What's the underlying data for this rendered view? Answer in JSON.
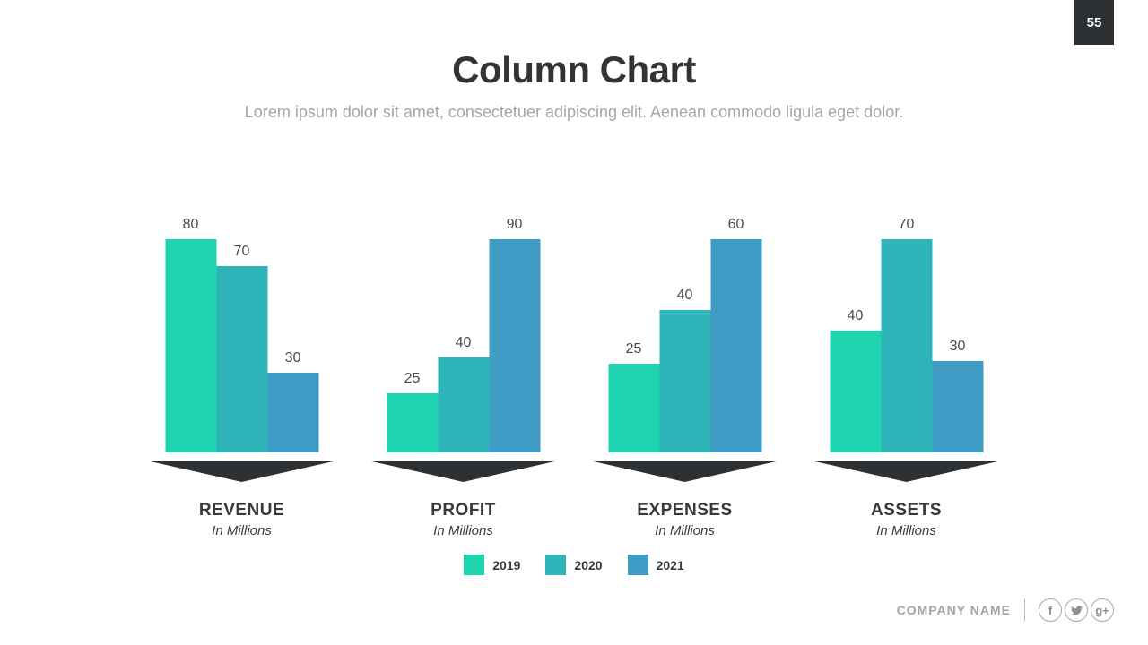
{
  "page_badge": {
    "number": "55"
  },
  "header": {
    "title": "Column Chart",
    "subtitle": "Lorem ipsum dolor sit amet, consectetuer adipiscing elit. Aenean commodo ligula eget dolor."
  },
  "chart_data": {
    "type": "bar",
    "title": "Column Chart",
    "series": [
      {
        "name": "2019",
        "color": "#1ed3ad"
      },
      {
        "name": "2020",
        "color": "#2fb4b9"
      },
      {
        "name": "2021",
        "color": "#3f9dc5"
      }
    ],
    "groups": [
      {
        "label": "REVENUE",
        "sublabel": "In Millions",
        "values": [
          80,
          70,
          30
        ]
      },
      {
        "label": "PROFIT",
        "sublabel": "In Millions",
        "values": [
          25,
          40,
          90
        ]
      },
      {
        "label": "EXPENSES",
        "sublabel": "In Millions",
        "values": [
          25,
          40,
          60
        ]
      },
      {
        "label": "ASSETS",
        "sublabel": "In Millions",
        "values": [
          40,
          70,
          30
        ]
      }
    ],
    "value_labels": true,
    "legend_position": "bottom-center",
    "normalization": "each group's tallest bar is drawn at equal pixel height",
    "pointer_color": "#2e3134"
  },
  "footer": {
    "company_name": "COMPANY NAME",
    "facebook_glyph": "f",
    "google_plus_glyph": "g+",
    "social_icons": [
      "facebook",
      "twitter",
      "google-plus"
    ]
  }
}
